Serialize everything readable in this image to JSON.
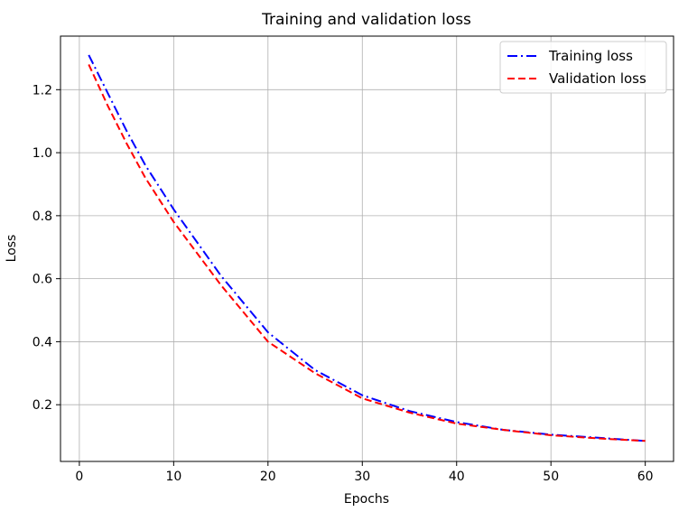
{
  "chart_data": {
    "type": "line",
    "title": "Training and validation loss",
    "xlabel": "Epochs",
    "ylabel": "Loss",
    "xlim": [
      -2,
      63
    ],
    "ylim": [
      0.02,
      1.37
    ],
    "grid": true,
    "legend_position": "top-right",
    "x_ticks": [
      0,
      10,
      20,
      30,
      40,
      50,
      60
    ],
    "x_tick_labels": [
      "0",
      "10",
      "20",
      "30",
      "40",
      "50",
      "60"
    ],
    "y_ticks": [
      0.2,
      0.4,
      0.6,
      0.8,
      1.0,
      1.2
    ],
    "y_tick_labels": [
      "0.2",
      "0.4",
      "0.6",
      "0.8",
      "1.0",
      "1.2"
    ],
    "x": [
      1,
      3,
      5,
      7,
      10,
      15,
      20,
      25,
      30,
      35,
      40,
      45,
      50,
      55,
      60
    ],
    "series": [
      {
        "name": "Training loss",
        "color": "#0000ff",
        "style": "dashdot",
        "values": [
          1.31,
          1.19,
          1.07,
          0.96,
          0.82,
          0.61,
          0.43,
          0.31,
          0.23,
          0.18,
          0.145,
          0.12,
          0.105,
          0.095,
          0.085
        ]
      },
      {
        "name": "Validation loss",
        "color": "#ff0000",
        "style": "dashed",
        "values": [
          1.28,
          1.15,
          1.03,
          0.92,
          0.78,
          0.58,
          0.4,
          0.3,
          0.22,
          0.175,
          0.14,
          0.12,
          0.103,
          0.093,
          0.085
        ]
      }
    ]
  }
}
